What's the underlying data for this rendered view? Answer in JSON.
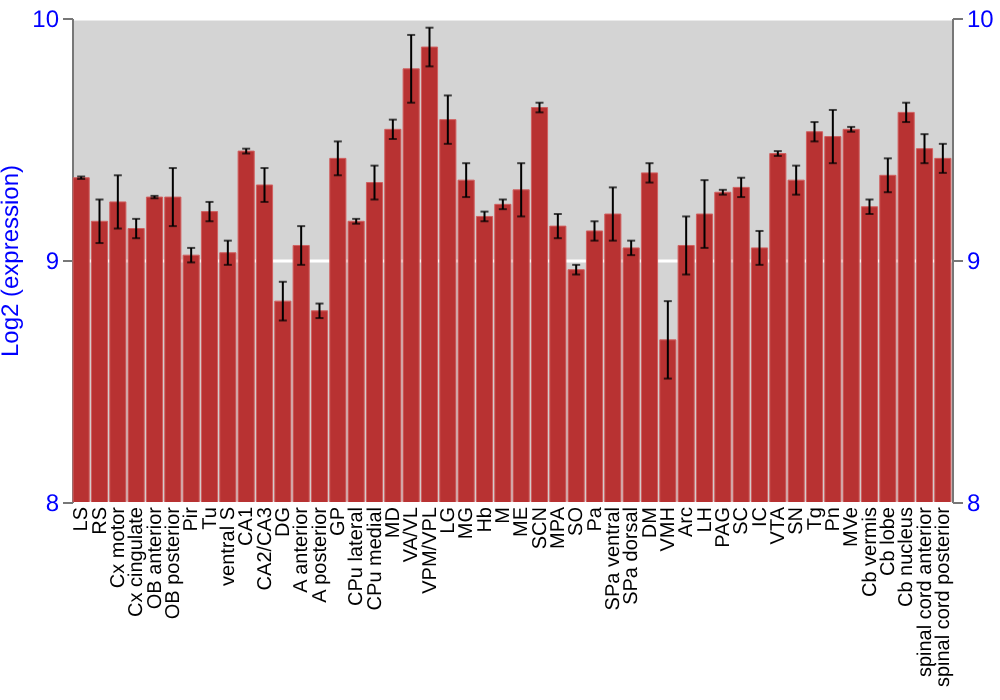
{
  "chart_data": {
    "type": "bar",
    "ylabel": "Log2 (expression)",
    "categories": [
      "LS",
      "RS",
      "Cx motor",
      "Cx cingulate",
      "OB anterior",
      "OB posterior",
      "Pir",
      "Tu",
      "ventral S",
      "CA1",
      "CA2/CA3",
      "DG",
      "A anterior",
      "A posterior",
      "GP",
      "CPu lateral",
      "CPu medial",
      "MD",
      "VA/VL",
      "VPM/VPL",
      "LG",
      "MG",
      "Hb",
      "M",
      "ME",
      "SCN",
      "MPA",
      "SO",
      "Pa",
      "SPa ventral",
      "SPa dorsal",
      "DM",
      "VMH",
      "Arc",
      "LH",
      "PAG",
      "SC",
      "IC",
      "VTA",
      "SN",
      "Tg",
      "Pn",
      "MVe",
      "Cb vermis",
      "Cb lobe",
      "Cb nucleus",
      "spinal cord anterior",
      "spinal cord posterior"
    ],
    "values": [
      9.34,
      9.16,
      9.24,
      9.13,
      9.26,
      9.26,
      9.02,
      9.2,
      9.03,
      9.45,
      9.31,
      8.83,
      9.06,
      8.79,
      9.42,
      9.16,
      9.32,
      9.54,
      9.79,
      9.88,
      9.58,
      9.33,
      9.18,
      9.23,
      9.29,
      9.63,
      9.14,
      8.96,
      9.12,
      9.19,
      9.05,
      9.36,
      8.67,
      9.06,
      9.19,
      9.28,
      9.3,
      9.05,
      9.44,
      9.33,
      9.53,
      9.51,
      9.54,
      9.22,
      9.35,
      9.61,
      9.46,
      9.42
    ],
    "errors": [
      0.005,
      0.09,
      0.11,
      0.04,
      0.005,
      0.12,
      0.03,
      0.04,
      0.05,
      0.01,
      0.07,
      0.08,
      0.08,
      0.03,
      0.07,
      0.01,
      0.07,
      0.04,
      0.14,
      0.08,
      0.1,
      0.07,
      0.02,
      0.02,
      0.11,
      0.02,
      0.05,
      0.02,
      0.04,
      0.11,
      0.03,
      0.04,
      0.16,
      0.12,
      0.14,
      0.01,
      0.04,
      0.07,
      0.01,
      0.06,
      0.04,
      0.11,
      0.01,
      0.03,
      0.07,
      0.04,
      0.06,
      0.06
    ],
    "color": "#b83232",
    "ylim": [
      8,
      10
    ],
    "yticks": [
      8,
      9,
      10
    ],
    "y2lim": [
      8,
      10
    ],
    "y2ticks": [
      8,
      9,
      10
    ],
    "grid": "y"
  }
}
